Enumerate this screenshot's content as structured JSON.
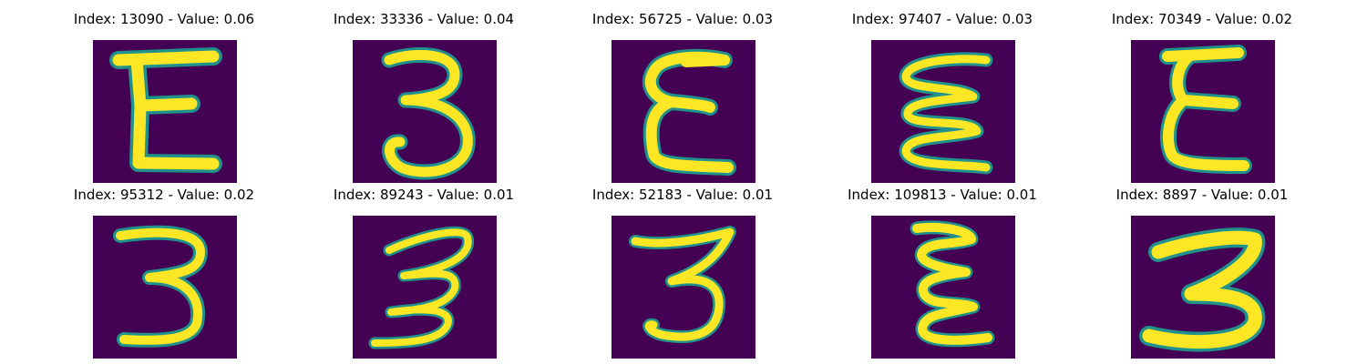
{
  "figure": {
    "background": "#ffffff",
    "colormap": "viridis",
    "colors": {
      "background_pixel": "#440154",
      "edge_pixel": "#21918c",
      "stroke_pixel": "#fde725"
    },
    "panels": [
      {
        "title": "Index: 13090 - Value: 0.06",
        "index": 13090,
        "value": 0.06,
        "glyph": "digit-3-mirrored"
      },
      {
        "title": "Index: 33336 - Value: 0.04",
        "index": 33336,
        "value": 0.04,
        "glyph": "digit-3"
      },
      {
        "title": "Index: 56725 - Value: 0.03",
        "index": 56725,
        "value": 0.03,
        "glyph": "digit-3-mirrored"
      },
      {
        "title": "Index: 97407 - Value: 0.03",
        "index": 97407,
        "value": 0.03,
        "glyph": "digit-3-mirrored"
      },
      {
        "title": "Index: 70349 - Value: 0.02",
        "index": 70349,
        "value": 0.02,
        "glyph": "digit-3-mirrored"
      },
      {
        "title": "Index: 95312 - Value: 0.02",
        "index": 95312,
        "value": 0.02,
        "glyph": "digit-3"
      },
      {
        "title": "Index: 89243 - Value: 0.01",
        "index": 89243,
        "value": 0.01,
        "glyph": "digit-3"
      },
      {
        "title": "Index: 52183 - Value: 0.01",
        "index": 52183,
        "value": 0.01,
        "glyph": "digit-3"
      },
      {
        "title": "Index: 109813 - Value: 0.01",
        "index": 109813,
        "value": 0.01,
        "glyph": "digit-3-mirrored"
      },
      {
        "title": "Index: 8897 - Value: 0.01",
        "index": 8897,
        "value": 0.01,
        "glyph": "digit-3"
      }
    ]
  }
}
